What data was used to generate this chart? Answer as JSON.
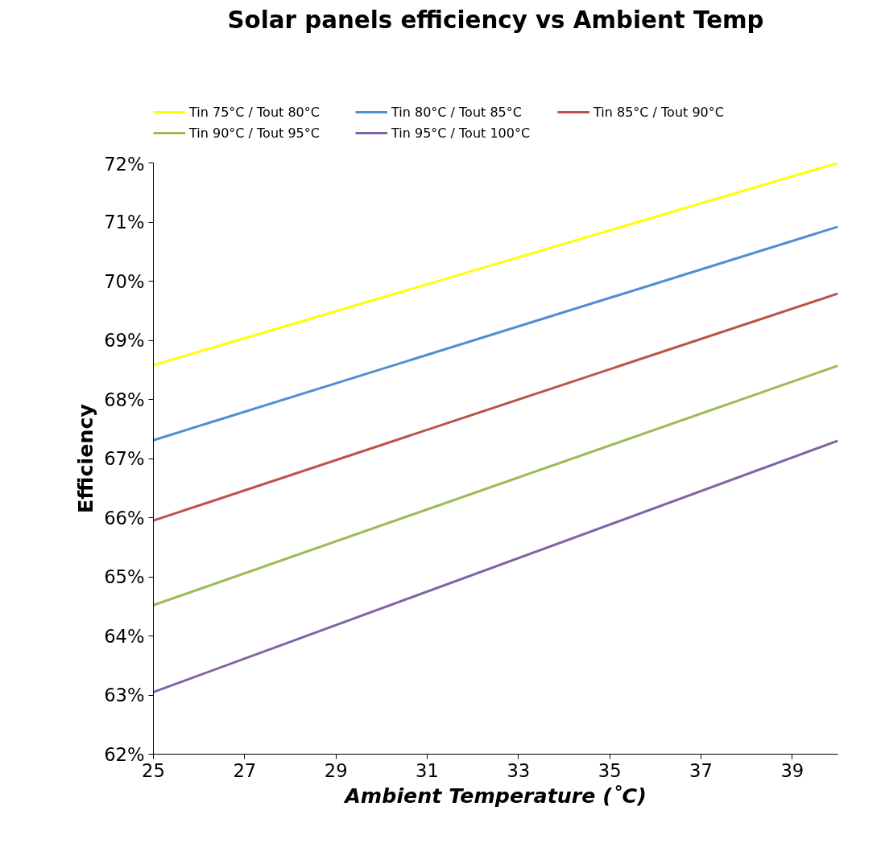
{
  "chart_data": {
    "type": "line",
    "title": "Solar panels efficiency vs Ambient Temp",
    "xlabel": "Ambient Temperature (˚C)",
    "ylabel": "Efficiency",
    "x": [
      25,
      40
    ],
    "series": [
      {
        "name": "Tin 75°C / Tout 80°C",
        "color": "#ffff00",
        "values": [
          68.58,
          72.0
        ]
      },
      {
        "name": "Tin 80°C / Tout 85°C",
        "color": "#4f8fd0",
        "values": [
          67.31,
          70.92
        ]
      },
      {
        "name": "Tin 85°C / Tout 90°C",
        "color": "#c0504d",
        "values": [
          65.95,
          69.79
        ]
      },
      {
        "name": "Tin 90°C / Tout 95°C",
        "color": "#9bbb59",
        "values": [
          64.52,
          68.57
        ]
      },
      {
        "name": "Tin 95°C / Tout 100°C",
        "color": "#8064a2",
        "values": [
          63.05,
          67.3
        ]
      }
    ],
    "xlim": [
      25,
      40
    ],
    "xticks": [
      25,
      27,
      29,
      31,
      33,
      35,
      37,
      39
    ],
    "ylim": [
      62,
      72
    ],
    "yticks": [
      {
        "value": 62,
        "label": "62%"
      },
      {
        "value": 63,
        "label": "63%"
      },
      {
        "value": 64,
        "label": "64%"
      },
      {
        "value": 65,
        "label": "65%"
      },
      {
        "value": 66,
        "label": "66%"
      },
      {
        "value": 67,
        "label": "67%"
      },
      {
        "value": 68,
        "label": "68%"
      },
      {
        "value": 69,
        "label": "69%"
      },
      {
        "value": 70,
        "label": "70%"
      },
      {
        "value": 71,
        "label": "71%"
      },
      {
        "value": 72,
        "label": "72%"
      }
    ],
    "grid": false,
    "legend": "top",
    "marker": "none",
    "line_style": "solid"
  }
}
